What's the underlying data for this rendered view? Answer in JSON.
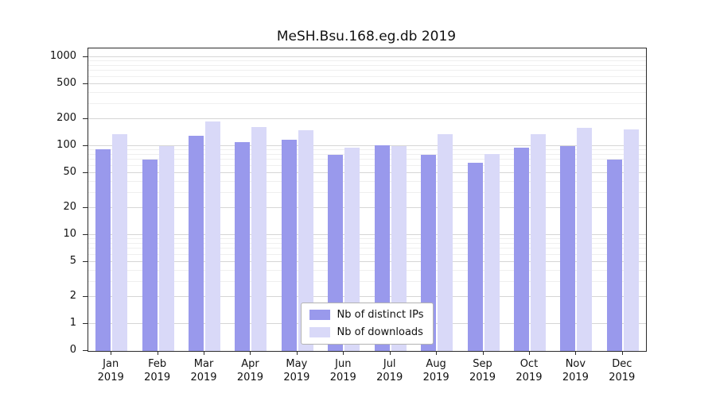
{
  "chart_data": {
    "type": "bar",
    "title": "MeSH.Bsu.168.eg.db 2019",
    "scale": "symlog",
    "grid": true,
    "legend_position": "lower center",
    "categories": [
      "Jan",
      "Feb",
      "Mar",
      "Apr",
      "May",
      "Jun",
      "Jul",
      "Aug",
      "Sep",
      "Oct",
      "Nov",
      "Dec"
    ],
    "xlabel_year": "2019",
    "yticks": [
      0,
      1,
      2,
      5,
      10,
      20,
      50,
      100,
      200,
      500,
      1000
    ],
    "y_minor_ticks": [
      3,
      4,
      6,
      7,
      8,
      9,
      30,
      40,
      60,
      70,
      80,
      90,
      300,
      400,
      600,
      700,
      800,
      900
    ],
    "ylim": [
      0,
      1400
    ],
    "series": [
      {
        "name": "Nb of distinct IPs",
        "color": "#9999ec",
        "values": [
          93,
          70,
          130,
          112,
          118,
          80,
          102,
          80,
          65,
          96,
          100,
          70
        ]
      },
      {
        "name": "Nb of downloads",
        "color": "#d9d9f8",
        "values": [
          135,
          100,
          190,
          165,
          150,
          97,
          100,
          135,
          82,
          135,
          160,
          155
        ]
      }
    ]
  },
  "colors": {
    "grid_major": "#d6d6d6",
    "grid_minor": "#efefef",
    "axis": "#2b2b2b"
  }
}
